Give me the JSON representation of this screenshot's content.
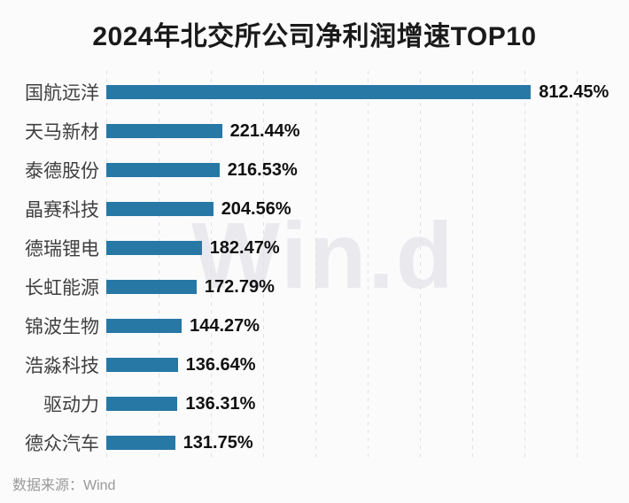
{
  "title": "2024年北交所公司净利润增速TOP10",
  "watermark": "Win.d",
  "footer": {
    "source": "数据来源：Wind"
  },
  "colors": {
    "bar": "#2878a6",
    "grid": "#e1e1e6",
    "title_text": "#1a1a1a",
    "category_text": "#404040",
    "value_text": "#111111",
    "footer_text": "#999999",
    "watermark_text": "#eaeaee",
    "background": "#fbfbfc"
  },
  "chart_data": {
    "type": "bar",
    "orientation": "horizontal",
    "title": "2024年北交所公司净利润增速TOP10",
    "categories": [
      "国航远洋",
      "天马新材",
      "泰德股份",
      "晶赛科技",
      "德瑞锂电",
      "长虹能源",
      "锦波生物",
      "浩淼科技",
      "驱动力",
      "德众汽车"
    ],
    "values": [
      812.45,
      221.44,
      216.53,
      204.56,
      182.47,
      172.79,
      144.27,
      136.64,
      136.31,
      131.75
    ],
    "value_labels": [
      "812.45%",
      "221.44%",
      "216.53%",
      "204.56%",
      "182.47%",
      "172.79%",
      "144.27%",
      "136.64%",
      "136.31%",
      "131.75%"
    ],
    "unit": "%",
    "xlim": [
      0,
      900
    ],
    "grid_interval": 100,
    "grid": "vertical-dashed",
    "legend": "none",
    "source": "数据来源：Wind"
  }
}
